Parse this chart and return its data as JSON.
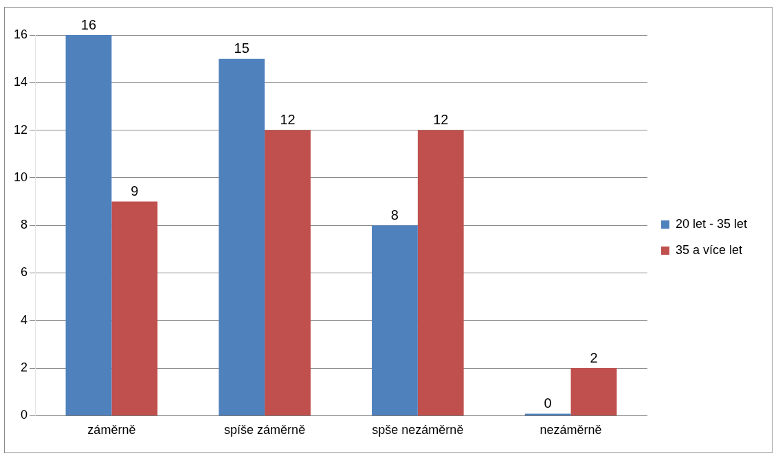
{
  "chart_data": {
    "type": "bar",
    "categories": [
      "záměrně",
      "spíše záměrně",
      "spše nezáměrně",
      "nezáměrně"
    ],
    "series": [
      {
        "name": "20 let - 35 let",
        "color": "#4f81bd",
        "values": [
          16,
          15,
          8,
          0
        ]
      },
      {
        "name": "35 a více let",
        "color": "#c0504d",
        "values": [
          9,
          12,
          12,
          2
        ]
      }
    ],
    "ylim": [
      0,
      16
    ],
    "yticks": [
      0,
      2,
      4,
      6,
      8,
      10,
      12,
      14,
      16
    ],
    "grid": "y",
    "legend": "right",
    "data_labels": true
  }
}
